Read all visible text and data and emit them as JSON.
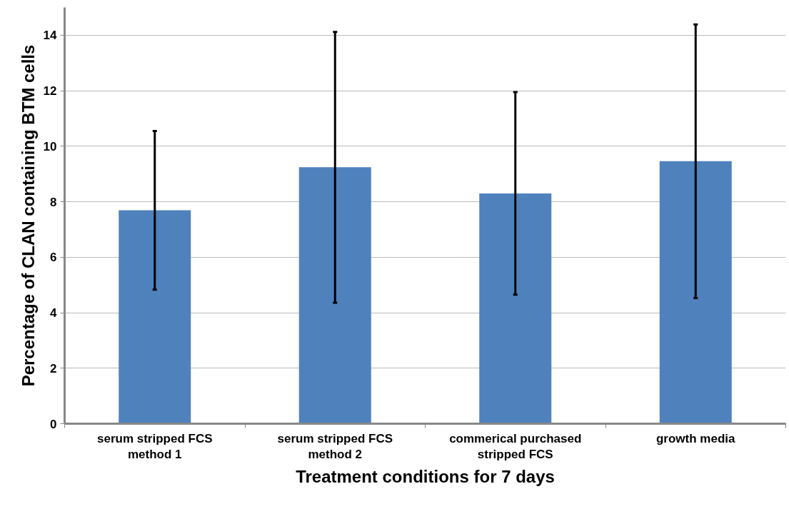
{
  "chart_data": {
    "type": "bar",
    "xlabel": "Treatment conditions for 7 days",
    "ylabel": "Percentage of CLAN containing BTM cells",
    "categories": [
      "serum stripped FCS method 1",
      "serum stripped FCS method 2",
      "commerical purchased stripped FCS",
      "growth media"
    ],
    "values": [
      7.69,
      9.24,
      8.3,
      9.46
    ],
    "errors": [
      2.86,
      4.88,
      3.65,
      4.93
    ],
    "color": "#4f81bd",
    "ylim": [
      0,
      15
    ],
    "yticks": [
      0,
      2,
      4,
      6,
      8,
      10,
      12,
      14
    ],
    "grid": "y"
  }
}
